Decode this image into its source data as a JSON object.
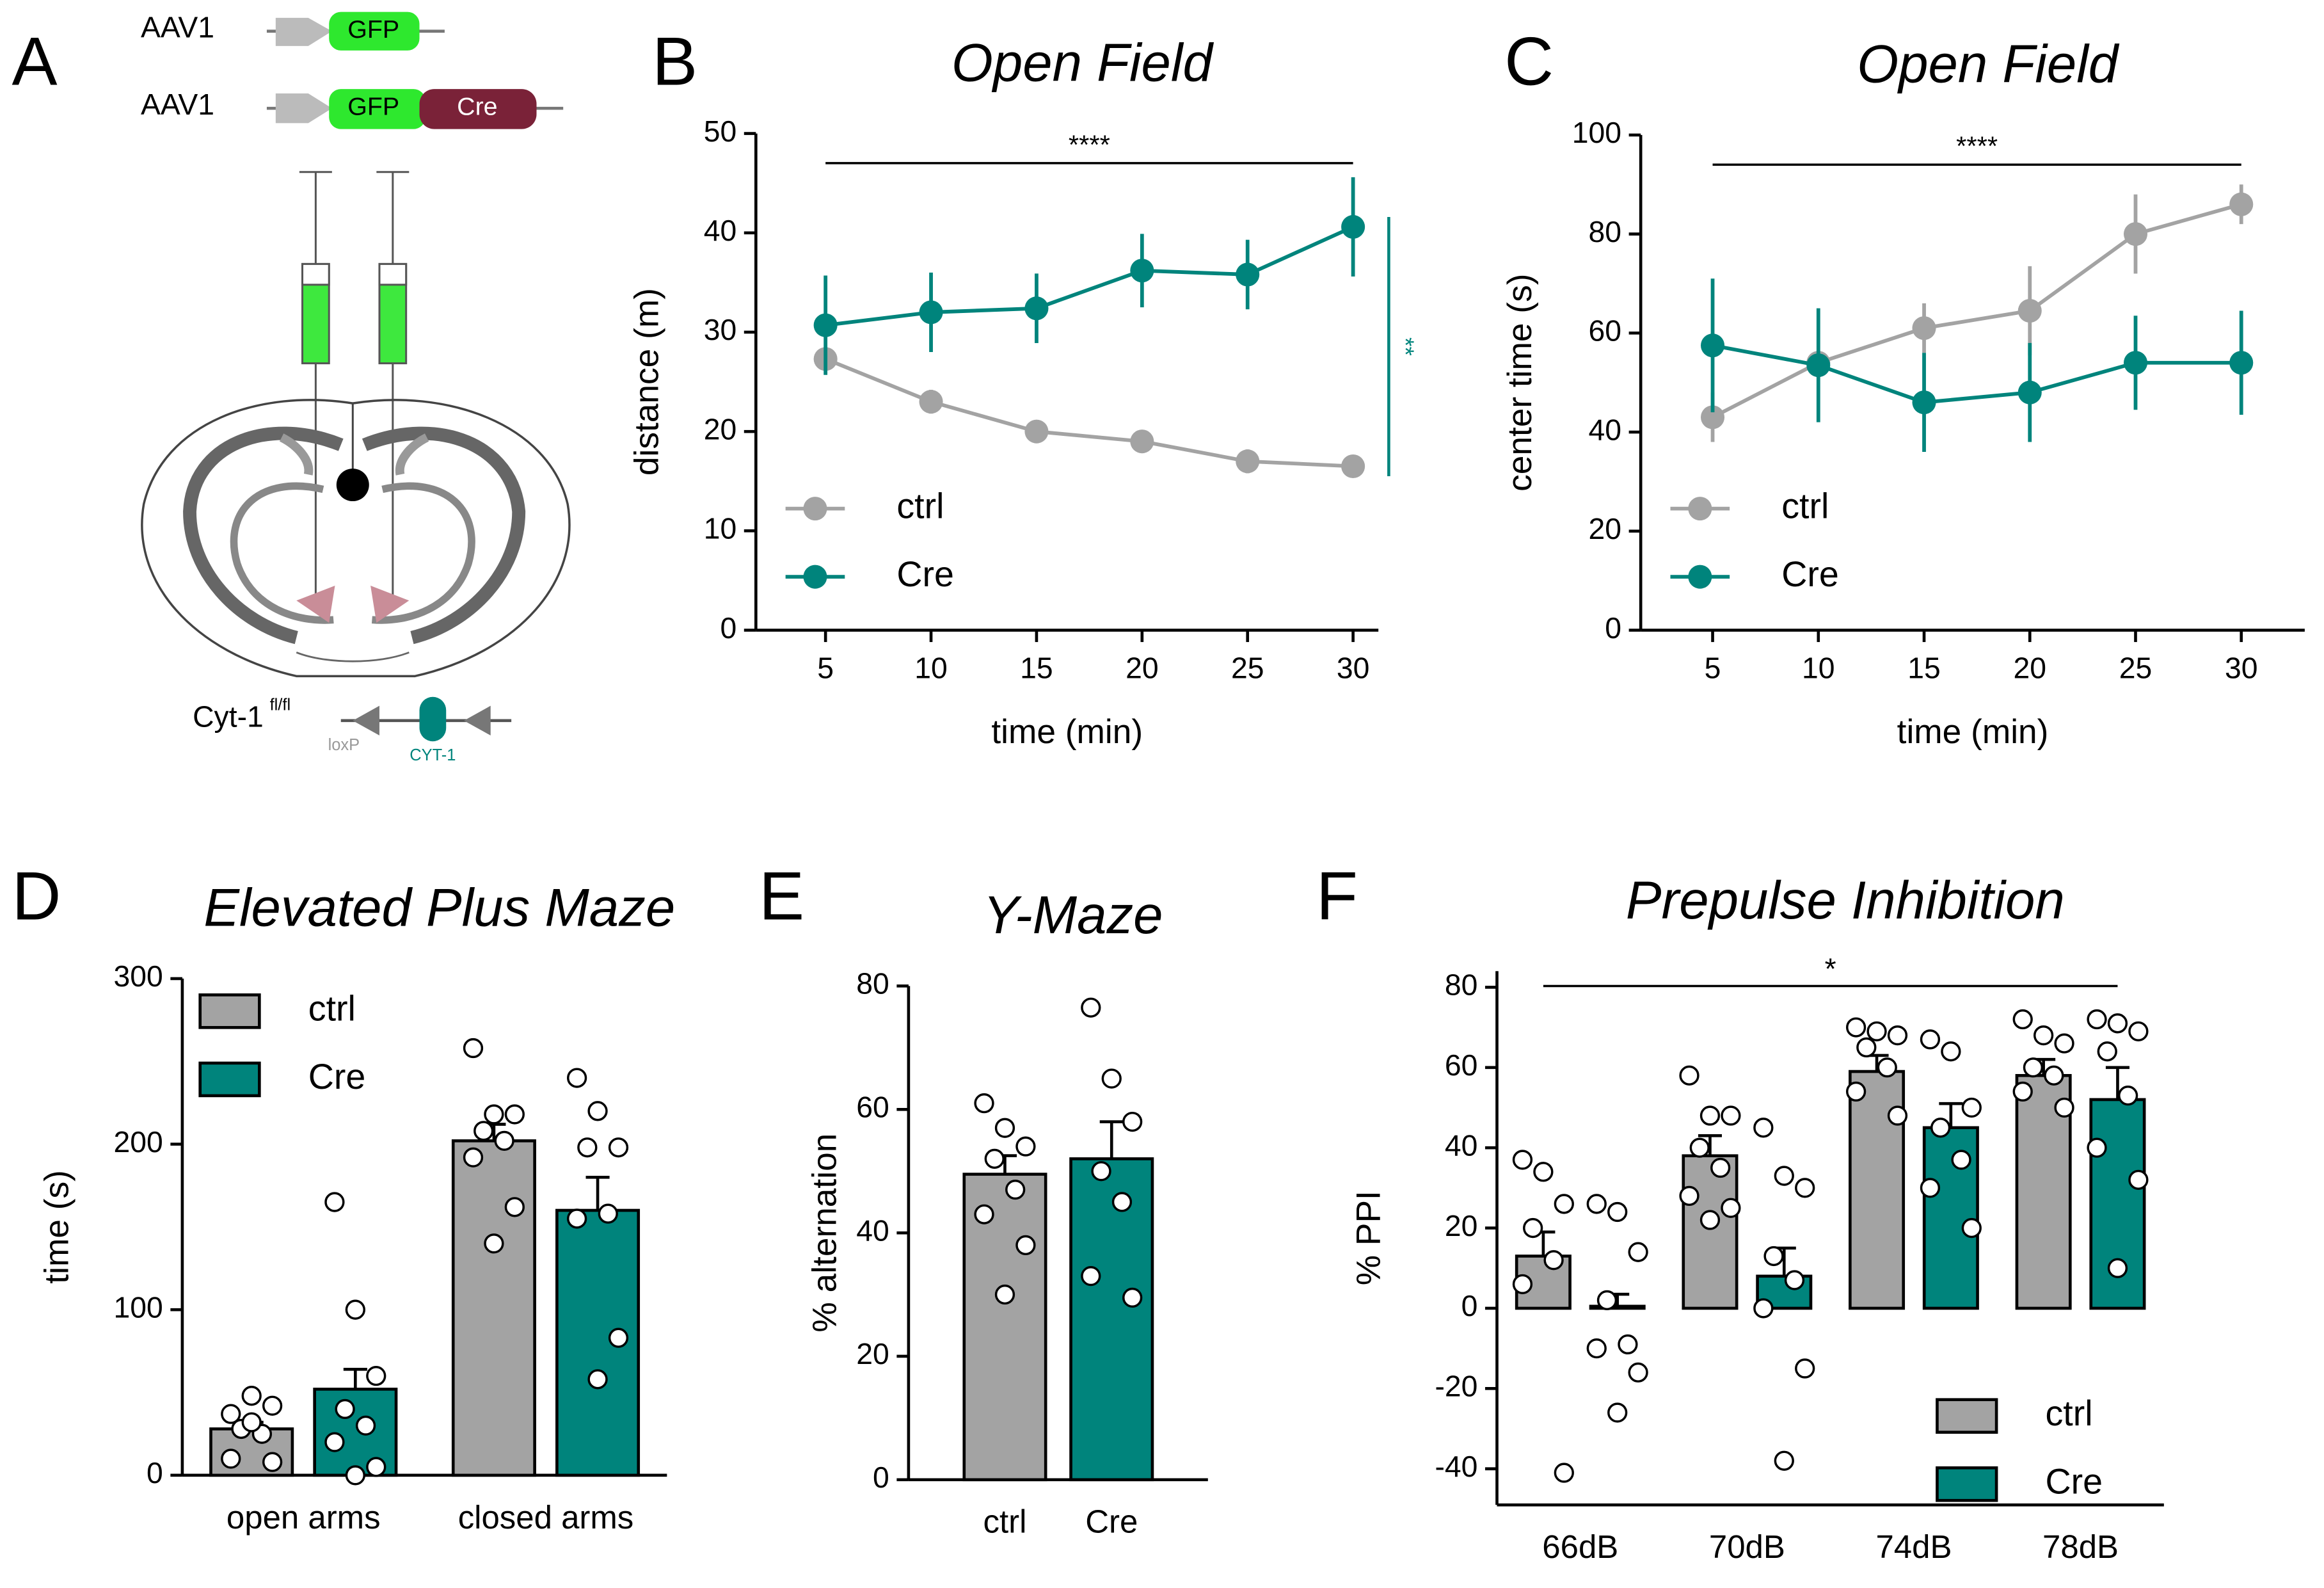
{
  "diagram": {
    "panel": "A",
    "constructs": [
      {
        "vector": "AAV1",
        "elements": [
          "GFP"
        ]
      },
      {
        "vector": "AAV1",
        "elements": [
          "GFP",
          "Cre"
        ]
      }
    ],
    "mouse": "Cyt-1",
    "mouse_superscript": "fl/fl",
    "site": "loxP",
    "gene": "CYT-1"
  },
  "chart_data": [
    {
      "panel": "B",
      "type": "line",
      "title": "Open Field",
      "xlabel": "time (min)",
      "ylabel": "distance (m)",
      "x": [
        5,
        10,
        15,
        20,
        25,
        30
      ],
      "xlim": [
        1.7,
        31.2
      ],
      "xticks": [
        5,
        10,
        15,
        20,
        25,
        30
      ],
      "ylim": [
        0,
        50
      ],
      "yticks": [
        0,
        10,
        20,
        30,
        40,
        50
      ],
      "legend": "lower left",
      "series": [
        {
          "name": "ctrl",
          "color": "#a3a3a3",
          "values": [
            27.3,
            23,
            20,
            19,
            17,
            16.5
          ],
          "errors": [
            1.2,
            1.2,
            0.6,
            0.6,
            1.2,
            0.6
          ]
        },
        {
          "name": "Cre",
          "color": "#00847c",
          "values": [
            30.7,
            32,
            32.4,
            36.2,
            35.8,
            40.6
          ],
          "errors": [
            5,
            4,
            3.5,
            3.7,
            3.5,
            5
          ]
        }
      ],
      "annotations": [
        {
          "text": "****",
          "color": "#000000"
        },
        {
          "text": "**",
          "color": "#00847c"
        }
      ]
    },
    {
      "panel": "C",
      "type": "line",
      "title": "Open Field",
      "xlabel": "time (min)",
      "ylabel": "center time (s)",
      "x": [
        5,
        10,
        15,
        20,
        25,
        30
      ],
      "xlim": [
        1.6,
        33
      ],
      "xticks": [
        5,
        10,
        15,
        20,
        25,
        30
      ],
      "ylim": [
        0,
        100
      ],
      "yticks": [
        0,
        20,
        40,
        60,
        80,
        100
      ],
      "legend": "lower left",
      "series": [
        {
          "name": "ctrl",
          "color": "#a3a3a3",
          "values": [
            43,
            54,
            61,
            64.5,
            80,
            86
          ],
          "errors": [
            5,
            2,
            5,
            9,
            8,
            4
          ]
        },
        {
          "name": "Cre",
          "color": "#00847c",
          "values": [
            57.5,
            53.5,
            46,
            48,
            54,
            54
          ],
          "errors": [
            13.5,
            11.5,
            10,
            10,
            9.5,
            10.5
          ]
        }
      ],
      "annotations": [
        {
          "text": "****",
          "color": "#000000"
        }
      ]
    },
    {
      "panel": "D",
      "type": "bar",
      "title": "Elevated Plus Maze",
      "ylabel": "time (s)",
      "categories": [
        "open arms",
        "closed arms"
      ],
      "ylim": [
        0,
        300
      ],
      "yticks": [
        0,
        100,
        200,
        300
      ],
      "legend": "upper left",
      "series": [
        {
          "name": "ctrl",
          "color": "#a3a3a3",
          "values": [
            28,
            202
          ],
          "errors": [
            4,
            10
          ],
          "points": [
            [
              37,
              48,
              42,
              28,
              25,
              10,
              8,
              32
            ],
            [
              258,
              218,
              218,
              208,
              202,
              192,
              162,
              140
            ]
          ]
        },
        {
          "name": "Cre",
          "color": "#00847c",
          "values": [
            52,
            160
          ],
          "errors": [
            12,
            20
          ],
          "points": [
            [
              165,
              100,
              60,
              40,
              30,
              20,
              5,
              0
            ],
            [
              240,
              220,
              198,
              198,
              158,
              155,
              83,
              58
            ]
          ]
        }
      ]
    },
    {
      "panel": "E",
      "type": "bar",
      "title": "Y-Maze",
      "ylabel": "% alternation",
      "categories": [
        "ctrl",
        "Cre"
      ],
      "ylim": [
        0,
        80
      ],
      "yticks": [
        0,
        20,
        40,
        60,
        80
      ],
      "values": [
        49.5,
        52
      ],
      "errors": [
        3,
        6
      ],
      "colors": [
        "#a3a3a3",
        "#00847c"
      ],
      "points": [
        [
          61,
          57,
          54,
          52,
          47,
          43,
          38,
          30
        ],
        [
          76.5,
          65,
          58,
          50,
          45,
          33,
          29.5
        ]
      ]
    },
    {
      "panel": "F",
      "type": "bar",
      "title": "Prepulse Inhibition",
      "ylabel": "% PPI",
      "categories": [
        "66dB",
        "70dB",
        "74dB",
        "78dB"
      ],
      "ylim": [
        -49,
        84
      ],
      "yticks": [
        -40,
        -20,
        0,
        20,
        40,
        60,
        80
      ],
      "legend": "lower right",
      "series": [
        {
          "name": "ctrl",
          "color": "#a3a3a3",
          "values": [
            13,
            38,
            59,
            58
          ],
          "errors": [
            6,
            5,
            4,
            4
          ],
          "points": [
            [
              37,
              34,
              26,
              20,
              12,
              6,
              -41
            ],
            [
              58,
              48,
              48,
              40,
              35,
              28,
              25,
              22
            ],
            [
              70,
              69,
              68,
              65,
              60,
              54,
              48
            ],
            [
              72,
              68,
              66,
              60,
              58,
              54,
              50
            ]
          ]
        },
        {
          "name": "Cre",
          "color": "#00847c",
          "values": [
            0.5,
            8,
            45,
            52
          ],
          "errors": [
            3,
            7,
            6,
            8
          ],
          "points": [
            [
              26,
              24,
              14,
              2,
              -9,
              -10,
              -16,
              -26
            ],
            [
              45,
              33,
              30,
              13,
              7,
              0,
              -15,
              -38
            ],
            [
              67,
              64,
              50,
              45,
              37,
              30,
              20
            ],
            [
              72,
              71,
              69,
              64,
              53,
              40,
              32,
              10
            ]
          ]
        }
      ],
      "annotations": [
        {
          "text": "*",
          "color": "#000000"
        }
      ]
    }
  ]
}
